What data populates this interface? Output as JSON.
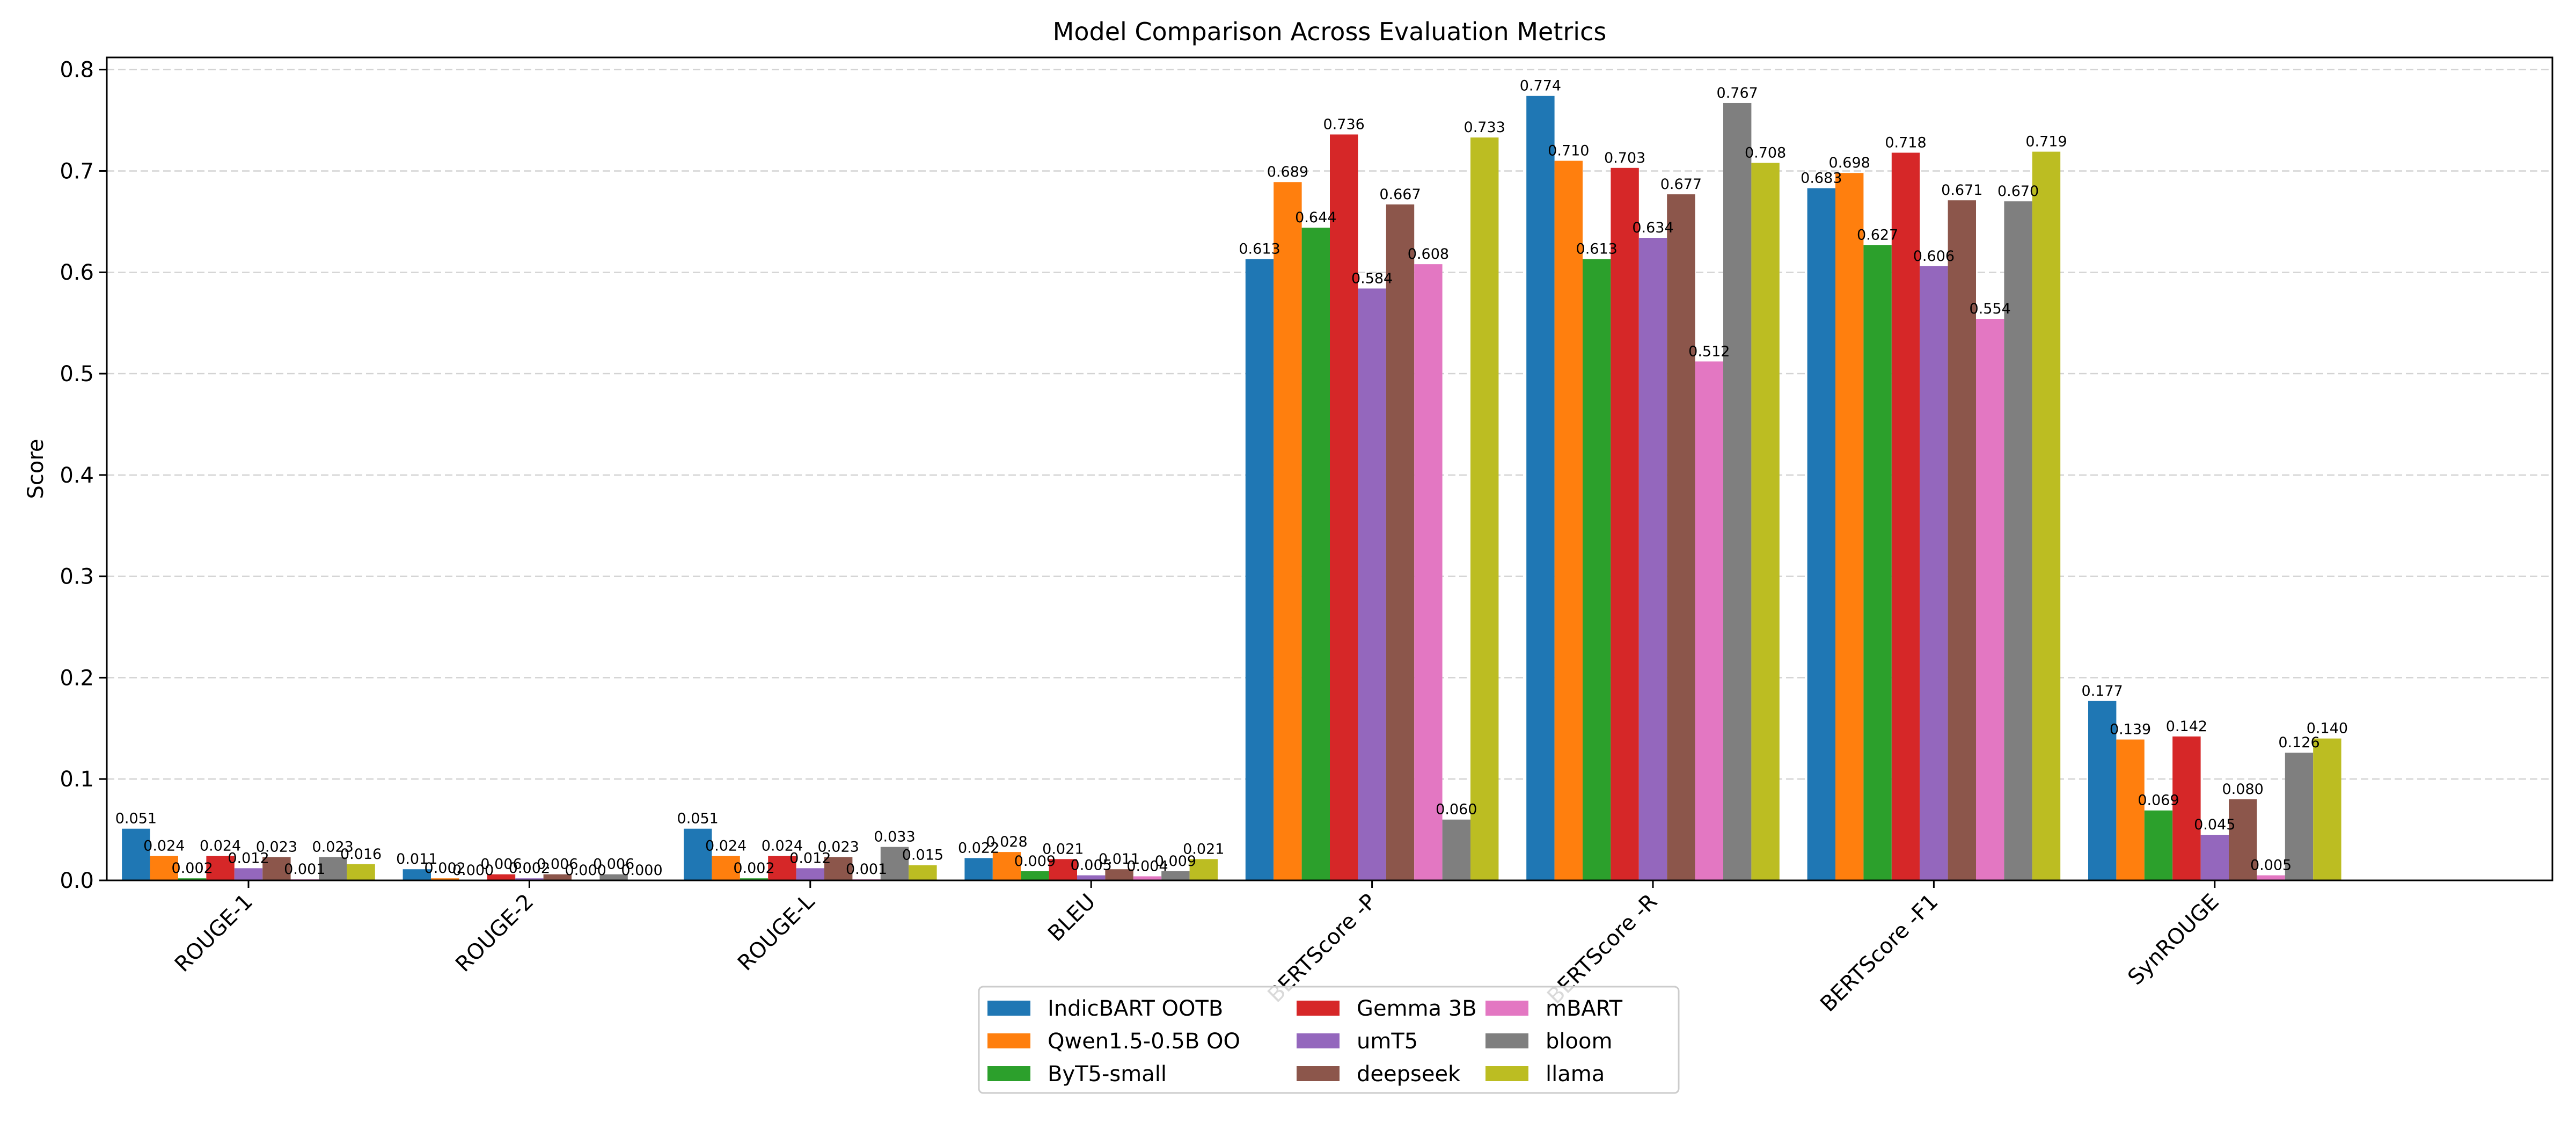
{
  "chart_data": {
    "type": "bar",
    "title": "Model Comparison Across Evaluation Metrics",
    "xlabel": "",
    "ylabel": "Score",
    "ylim": [
      0,
      0.812
    ],
    "yticks": [
      0.0,
      0.1,
      0.2,
      0.3,
      0.4,
      0.5,
      0.6,
      0.7,
      0.8
    ],
    "ytick_labels": [
      "0.0",
      "0.1",
      "0.2",
      "0.3",
      "0.4",
      "0.5",
      "0.6",
      "0.7",
      "0.8"
    ],
    "grid": "horizontal dashed",
    "legend_position": "bottom-center",
    "categories": [
      "ROUGE-1",
      "ROUGE-2",
      "ROUGE-L",
      "BLEU",
      "BERTScore -P",
      "BERTScore -R",
      "BERTScore -F1",
      "SynROUGE"
    ],
    "series": [
      {
        "name": "IndicBART OOTB",
        "color": "#1f77b4",
        "values": [
          0.051,
          0.011,
          0.051,
          0.022,
          0.613,
          0.774,
          0.683,
          0.177
        ],
        "labels": [
          "0.051",
          "0.011",
          "0.051",
          "0.022",
          "0.613",
          "0.774",
          "0.683",
          "0.177"
        ]
      },
      {
        "name": "Qwen1.5-0.5B OO",
        "color": "#ff7f0e",
        "values": [
          0.024,
          0.002,
          0.024,
          0.028,
          0.689,
          0.71,
          0.698,
          0.139
        ],
        "labels": [
          "0.024",
          "0.002",
          "0.024",
          "0.028",
          "0.689",
          "0.710",
          "0.698",
          "0.139"
        ]
      },
      {
        "name": "ByT5-small",
        "color": "#2ca02c",
        "values": [
          0.002,
          0.0,
          0.002,
          0.009,
          0.644,
          0.613,
          0.627,
          0.069
        ],
        "labels": [
          "0.002",
          "0.000",
          "0.002",
          "0.009",
          "0.644",
          "0.613",
          "0.627",
          "0.069"
        ]
      },
      {
        "name": "Gemma 3B",
        "color": "#d62728",
        "values": [
          0.024,
          0.006,
          0.024,
          0.021,
          0.736,
          0.703,
          0.718,
          0.142
        ],
        "labels": [
          "0.024",
          "0.006",
          "0.024",
          "0.021",
          "0.736",
          "0.703",
          "0.718",
          "0.142"
        ]
      },
      {
        "name": "umT5",
        "color": "#9467bd",
        "values": [
          0.012,
          0.002,
          0.012,
          0.005,
          0.584,
          0.634,
          0.606,
          0.045
        ],
        "labels": [
          "0.012",
          "0.002",
          "0.012",
          "0.005",
          "0.584",
          "0.634",
          "0.606",
          "0.045"
        ]
      },
      {
        "name": "deepseek",
        "color": "#8c564b",
        "values": [
          0.023,
          0.006,
          0.023,
          0.011,
          0.667,
          0.677,
          0.671,
          0.08
        ],
        "labels": [
          "0.023",
          "0.006",
          "0.023",
          "0.011",
          "0.667",
          "0.677",
          "0.671",
          "0.080"
        ]
      },
      {
        "name": "mBART",
        "color": "#e377c2",
        "values": [
          0.001,
          0.0,
          0.001,
          0.004,
          0.608,
          0.512,
          0.554,
          0.005
        ],
        "labels": [
          "0.001",
          "0.000",
          "0.001",
          "0.004",
          "0.608",
          "0.512",
          "0.554",
          "0.005"
        ]
      },
      {
        "name": "bloom",
        "color": "#7f7f7f",
        "values": [
          0.023,
          0.006,
          0.033,
          0.009,
          0.06,
          0.767,
          0.67,
          0.126
        ],
        "labels": [
          "0.023",
          "0.006",
          "0.033",
          "0.009",
          "0.060",
          "0.767",
          "0.670",
          "0.126"
        ]
      },
      {
        "name": "llama",
        "color": "#bcbd22",
        "values": [
          0.016,
          0.0,
          0.015,
          0.021,
          0.733,
          0.708,
          0.719,
          0.14
        ],
        "labels": [
          "0.016",
          "0.000",
          "0.015",
          "0.021",
          "0.733",
          "0.708",
          "0.719",
          "0.140"
        ]
      }
    ]
  }
}
